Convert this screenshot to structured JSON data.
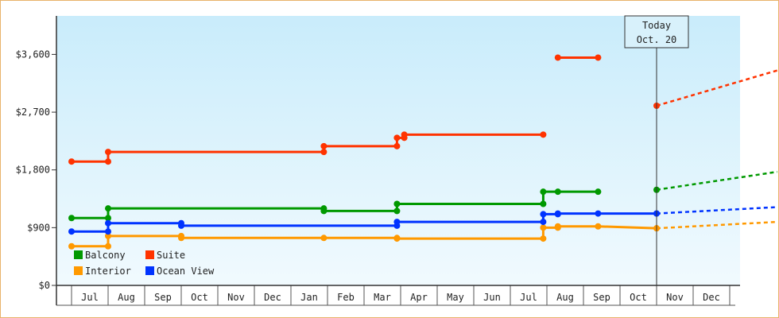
{
  "chart_data": {
    "type": "line",
    "title": "",
    "xlabel": "",
    "ylabel": "",
    "ylim": [
      0,
      4200
    ],
    "y_ticks": [
      "$0",
      "$900",
      "$1,800",
      "$2,700",
      "$3,600"
    ],
    "y_tick_values": [
      0,
      900,
      1800,
      2700,
      3600
    ],
    "x_tick_labels": [
      "Jul",
      "Aug",
      "Sep",
      "Oct",
      "Nov",
      "Dec",
      "Jan",
      "Feb",
      "Mar",
      "Apr",
      "May",
      "Jun",
      "Jul",
      "Aug",
      "Sep",
      "Oct",
      "Nov",
      "Dec"
    ],
    "x_range_months": [
      "Jun (year 1)",
      "Dec (year 2)"
    ],
    "grid": "vertical month separators",
    "legend_placement": "bottom-left",
    "marker": {
      "label_line1": "Today",
      "label_line2": "Oct. 20",
      "x_month_index": 15.5
    },
    "series": [
      {
        "name": "Balcony",
        "color": "#009900",
        "points": [
          [
            -0.5,
            1050
          ],
          [
            0.5,
            1050
          ],
          [
            0.5,
            1200
          ],
          [
            6.4,
            1200
          ],
          [
            6.4,
            1160
          ],
          [
            8.4,
            1160
          ],
          [
            8.4,
            1270
          ],
          [
            12.4,
            1270
          ],
          [
            12.4,
            1460
          ],
          [
            12.8,
            1460
          ],
          [
            13.9,
            1460
          ]
        ],
        "forecast": [
          [
            15.5,
            1490
          ],
          [
            18.8,
            1770
          ]
        ]
      },
      {
        "name": "Suite",
        "color": "#ff3300",
        "points": [
          [
            -0.5,
            1930
          ],
          [
            0.5,
            1930
          ],
          [
            0.5,
            2080
          ],
          [
            6.4,
            2080
          ],
          [
            6.4,
            2170
          ],
          [
            8.4,
            2170
          ],
          [
            8.4,
            2300
          ],
          [
            8.6,
            2300
          ],
          [
            8.6,
            2350
          ],
          [
            12.4,
            2350
          ]
        ],
        "segments": [
          [
            [
              12.8,
              3550
            ],
            [
              13.9,
              3550
            ]
          ]
        ],
        "forecast": [
          [
            15.5,
            2800
          ],
          [
            18.8,
            3350
          ]
        ]
      },
      {
        "name": "Interior",
        "color": "#ff9900",
        "points": [
          [
            -0.5,
            610
          ],
          [
            0.5,
            610
          ],
          [
            0.5,
            770
          ],
          [
            2.5,
            770
          ],
          [
            2.5,
            740
          ],
          [
            6.4,
            740
          ],
          [
            8.4,
            740
          ],
          [
            8.4,
            730
          ],
          [
            12.4,
            730
          ],
          [
            12.4,
            900
          ],
          [
            12.8,
            900
          ],
          [
            12.8,
            920
          ],
          [
            13.9,
            920
          ],
          [
            15.5,
            890
          ]
        ],
        "forecast": [
          [
            15.5,
            890
          ],
          [
            18.8,
            990
          ]
        ]
      },
      {
        "name": "Ocean View",
        "color": "#0033ff",
        "points": [
          [
            -0.5,
            840
          ],
          [
            0.5,
            840
          ],
          [
            0.5,
            970
          ],
          [
            2.5,
            970
          ],
          [
            2.5,
            930
          ],
          [
            8.4,
            930
          ],
          [
            8.4,
            990
          ],
          [
            12.4,
            990
          ],
          [
            12.4,
            1110
          ],
          [
            12.8,
            1110
          ],
          [
            12.8,
            1120
          ],
          [
            13.9,
            1120
          ],
          [
            15.5,
            1120
          ]
        ],
        "forecast": [
          [
            15.5,
            1120
          ],
          [
            18.8,
            1220
          ]
        ]
      }
    ]
  }
}
